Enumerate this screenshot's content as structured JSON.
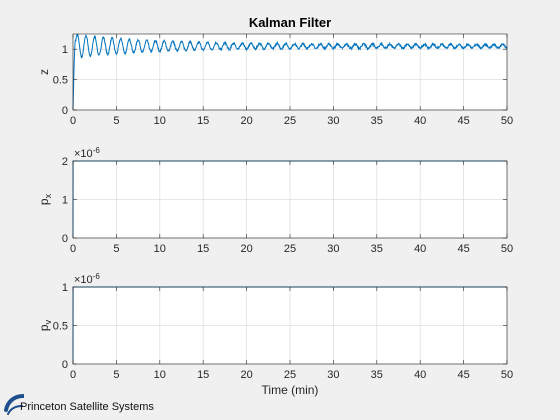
{
  "chart_data": [
    {
      "type": "line",
      "title": "Kalman Filter",
      "ylabel": "z",
      "xlabel": "",
      "xlim": [
        0,
        50
      ],
      "ylim": [
        0,
        1.25
      ],
      "xticks": [
        0,
        5,
        10,
        15,
        20,
        25,
        30,
        35,
        40,
        45,
        50
      ],
      "yticks": [
        0,
        0.5,
        1
      ],
      "ytick_labels": [
        "0",
        "0.5",
        "1"
      ],
      "grid": true,
      "series": [
        {
          "model": "damped_oscillation_with_noise",
          "initial": 0,
          "final": 1.05,
          "first_peak": 1.22,
          "first_trough": 0.05,
          "period_min": 1.0,
          "decay_time_min": 9,
          "residual_amplitude": 0.03,
          "color": "#0072bd"
        }
      ]
    },
    {
      "type": "line",
      "title": "",
      "ylabel": "p",
      "ylabel_sub": "x",
      "exponent": "×10",
      "exponent_power": "-6",
      "xlim": [
        0,
        50
      ],
      "ylim": [
        0,
        2
      ],
      "xticks": [
        0,
        5,
        10,
        15,
        20,
        25,
        30,
        35,
        40,
        45,
        50
      ],
      "yticks": [
        0,
        1,
        2
      ],
      "ytick_labels": [
        "0",
        "1",
        "2"
      ],
      "grid": true,
      "series": [
        {
          "x": [
            0,
            0.01,
            50
          ],
          "y": [
            0,
            2,
            2
          ],
          "color": "#0072bd"
        }
      ]
    },
    {
      "type": "line",
      "title": "",
      "ylabel": "p",
      "ylabel_sub": "v",
      "exponent": "×10",
      "exponent_power": "-6",
      "xlabel": "Time (min)",
      "xlim": [
        0,
        50
      ],
      "ylim": [
        0,
        1
      ],
      "xticks": [
        0,
        5,
        10,
        15,
        20,
        25,
        30,
        35,
        40,
        45,
        50
      ],
      "yticks": [
        0,
        0.5,
        1
      ],
      "ytick_labels": [
        "0",
        "0.5",
        "1"
      ],
      "grid": true,
      "series": [
        {
          "x": [
            0,
            0.01,
            50
          ],
          "y": [
            0,
            1,
            1
          ],
          "color": "#0072bd"
        }
      ]
    }
  ],
  "branding": {
    "logo_text": "Princeton Satellite Systems",
    "logo_color": "#1f4e8c"
  },
  "colors": {
    "axes_bg": "#ffffff",
    "figure_bg": "#f0f0f0",
    "grid": "#dfdfdf",
    "axis": "#262626",
    "line": "#0072bd"
  }
}
